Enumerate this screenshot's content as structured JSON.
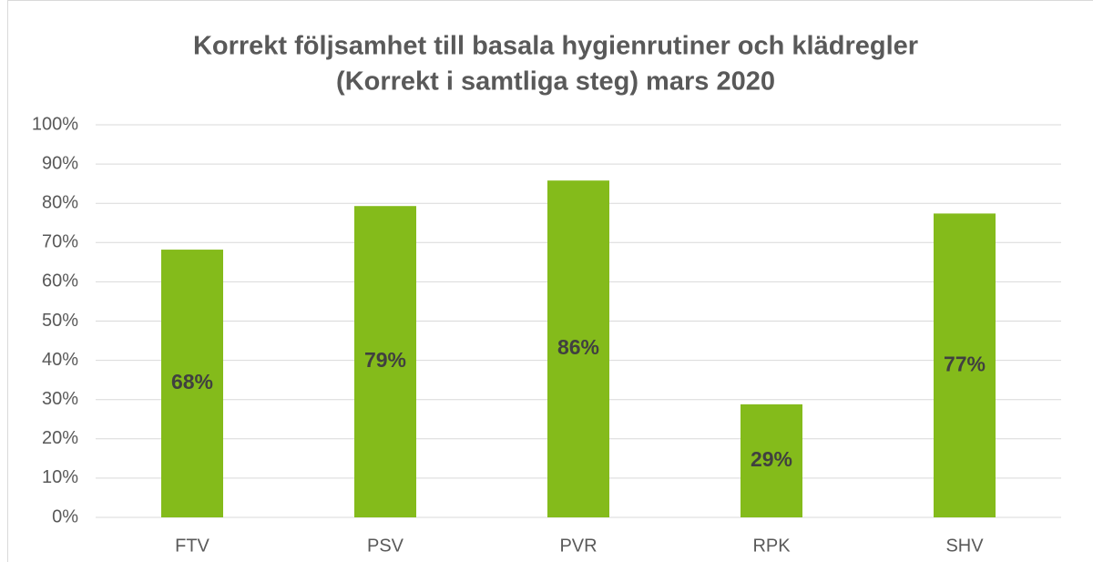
{
  "chart_data": {
    "type": "bar",
    "title": [
      "Korrekt följsamhet till basala hygienrutiner och klädregler",
      "(Korrekt i samtliga steg) mars 2020"
    ],
    "categories": [
      "FTV",
      "PSV",
      "PVR",
      "RPK",
      "SHV"
    ],
    "values": [
      68.2,
      79.3,
      85.8,
      28.8,
      77.4
    ],
    "value_labels": [
      "68%",
      "79%",
      "86%",
      "29%",
      "77%"
    ],
    "color": "#84bb1b",
    "ylim": [
      0,
      100
    ],
    "yticks": [
      {
        "value": 0,
        "label": "0%"
      },
      {
        "value": 10,
        "label": "10%"
      },
      {
        "value": 20,
        "label": "20%"
      },
      {
        "value": 30,
        "label": "30%"
      },
      {
        "value": 40,
        "label": "40%"
      },
      {
        "value": 50,
        "label": "50%"
      },
      {
        "value": 60,
        "label": "60%"
      },
      {
        "value": 70,
        "label": "70%"
      },
      {
        "value": 80,
        "label": "80%"
      },
      {
        "value": 90,
        "label": "90%"
      },
      {
        "value": 100,
        "label": "100%"
      }
    ],
    "grid": true
  }
}
